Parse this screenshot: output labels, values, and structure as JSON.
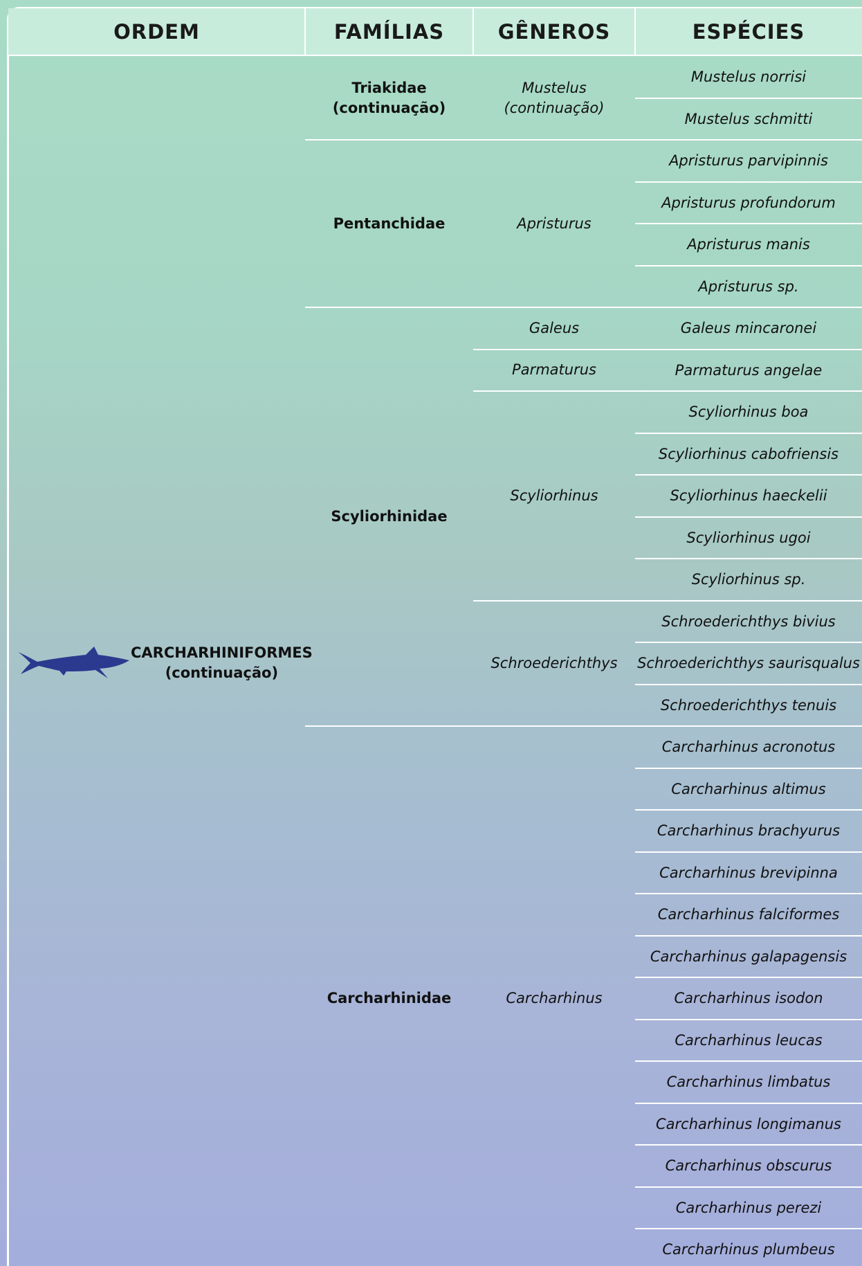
{
  "header": {
    "columns": [
      "ORDEM",
      "FAMÍLIAS",
      "GÊNEROS",
      "ESPÉCIES"
    ]
  },
  "order": {
    "name": "CARCHARHINIFORMES",
    "note": "(continuação)"
  },
  "families": [
    {
      "name": "Triakidae",
      "note": "(continuação)",
      "genera": [
        {
          "name": "Mustelus",
          "note": "(continuação)",
          "species": [
            "Mustelus norrisi",
            "Mustelus schmitti"
          ]
        }
      ]
    },
    {
      "name": "Pentanchidae",
      "genera": [
        {
          "name": "Apristurus",
          "species": [
            "Apristurus parvipinnis",
            "Apristurus profundorum",
            "Apristurus manis",
            "Apristurus sp."
          ]
        }
      ]
    },
    {
      "name": "Scyliorhinidae",
      "genera": [
        {
          "name": "Galeus",
          "species": [
            "Galeus mincaronei"
          ]
        },
        {
          "name": "Parmaturus",
          "species": [
            "Parmaturus angelae"
          ]
        },
        {
          "name": "Scyliorhinus",
          "species": [
            "Scyliorhinus boa",
            "Scyliorhinus cabofriensis",
            "Scyliorhinus haeckelii",
            "Scyliorhinus ugoi",
            "Scyliorhinus sp."
          ]
        },
        {
          "name": "Schroederichthys",
          "species": [
            "Schroederichthys bivius",
            "Schroederichthys saurisqualus",
            "Schroederichthys tenuis"
          ]
        }
      ]
    },
    {
      "name": "Carcharhinidae",
      "genera": [
        {
          "name": "Carcharhinus",
          "species": [
            "Carcharhinus acronotus",
            "Carcharhinus altimus",
            "Carcharhinus brachyurus",
            "Carcharhinus brevipinna",
            "Carcharhinus falciformes",
            "Carcharhinus galapagensis",
            "Carcharhinus isodon",
            "Carcharhinus leucas",
            "Carcharhinus limbatus",
            "Carcharhinus longimanus",
            "Carcharhinus obscurus",
            "Carcharhinus perezi",
            "Carcharhinus plumbeus"
          ]
        }
      ]
    }
  ]
}
